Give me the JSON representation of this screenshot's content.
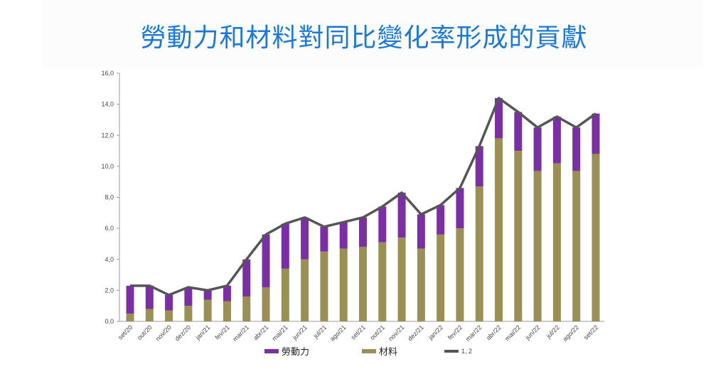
{
  "title": "勞動力和材料對同比變化率形成的貢獻",
  "chart_data": {
    "type": "bar",
    "stacked": true,
    "categories": [
      "set/20",
      "out/20",
      "nov/20",
      "dez/20",
      "jan/21",
      "fev/21",
      "mar/21",
      "abr/21",
      "mai/21",
      "jun/21",
      "jul/21",
      "ago/21",
      "set/21",
      "out/21",
      "nov/21",
      "dez/21",
      "jan/22",
      "fev/22",
      "mar/22",
      "abr/22",
      "mai/22",
      "jun/22",
      "jul/22",
      "ago/22",
      "set/22"
    ],
    "series": [
      {
        "name": "材料",
        "color": "#9a8f55",
        "values": [
          0.5,
          0.8,
          0.7,
          1.0,
          1.4,
          1.3,
          1.6,
          2.2,
          3.4,
          4.0,
          4.5,
          4.7,
          4.8,
          5.1,
          5.4,
          4.7,
          5.6,
          6.0,
          8.7,
          11.8,
          11.0,
          9.7,
          10.2,
          9.7,
          10.8
        ]
      },
      {
        "name": "勞動力",
        "color": "#7a2fa2",
        "values": [
          1.8,
          1.5,
          1.0,
          1.2,
          0.6,
          1.0,
          2.4,
          3.4,
          2.9,
          2.7,
          1.6,
          1.7,
          1.9,
          2.3,
          2.9,
          2.2,
          1.9,
          2.6,
          2.6,
          2.6,
          2.5,
          2.8,
          3.0,
          2.8,
          2.6
        ]
      },
      {
        "name": "1, 2",
        "type": "line",
        "color": "#555555",
        "values": [
          2.3,
          2.3,
          1.7,
          2.2,
          2.0,
          2.3,
          4.0,
          5.6,
          6.3,
          6.7,
          6.1,
          6.4,
          6.7,
          7.4,
          8.3,
          6.9,
          7.5,
          8.6,
          11.3,
          14.4,
          13.5,
          12.5,
          13.2,
          12.5,
          13.4
        ]
      }
    ],
    "y_ticks": [
      "0,0",
      "2,0",
      "4,0",
      "6,0",
      "8,0",
      "10,0",
      "12,0",
      "14,0",
      "16,0"
    ],
    "ylim": [
      0,
      16
    ],
    "legend_position": "bottom",
    "legend": [
      {
        "label": "勞動力",
        "color": "#7a2fa2",
        "kind": "bar"
      },
      {
        "label": "材料",
        "color": "#9a8f55",
        "kind": "bar"
      },
      {
        "label": "1, 2",
        "color": "#555555",
        "kind": "line"
      }
    ]
  }
}
